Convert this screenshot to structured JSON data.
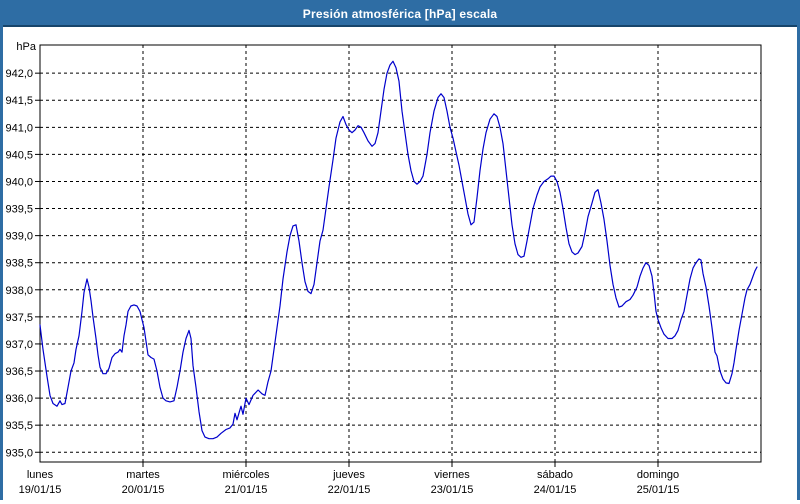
{
  "window": {
    "title": "Presión atmosférica [hPa] escala"
  },
  "colors": {
    "frame": "#2e6da4",
    "frame_dark": "#17456b",
    "title_text": "#ffffff",
    "background": "#ffffff",
    "grid": "#000000",
    "axis_text": "#000000",
    "series": "#0000cc"
  },
  "chart_data": {
    "type": "line",
    "title": "Presión atmosférica [hPa] escala",
    "legend": "none",
    "grid": "dashed",
    "y_axis": {
      "unit_label": "hPa",
      "min": 935.0,
      "max": 942.0,
      "tick_step": 0.5,
      "top_value": 942.52,
      "bottom_value": 934.82,
      "ticks": [
        {
          "value": 942.0,
          "label": "942,0"
        },
        {
          "value": 941.5,
          "label": "941,5"
        },
        {
          "value": 941.0,
          "label": "941,0"
        },
        {
          "value": 940.5,
          "label": "940,5"
        },
        {
          "value": 940.0,
          "label": "940,0"
        },
        {
          "value": 939.5,
          "label": "939,5"
        },
        {
          "value": 939.0,
          "label": "939,0"
        },
        {
          "value": 938.5,
          "label": "938,5"
        },
        {
          "value": 938.0,
          "label": "938,0"
        },
        {
          "value": 937.5,
          "label": "937,5"
        },
        {
          "value": 937.0,
          "label": "937,0"
        },
        {
          "value": 936.5,
          "label": "936,5"
        },
        {
          "value": 936.0,
          "label": "936,0"
        },
        {
          "value": 935.5,
          "label": "935,5"
        },
        {
          "value": 935.0,
          "label": "935,0"
        }
      ]
    },
    "x_axis": {
      "unit": "day",
      "domain_days": 7,
      "days": [
        {
          "name": "lunes",
          "date": "19/01/15"
        },
        {
          "name": "martes",
          "date": "20/01/15"
        },
        {
          "name": "miércoles",
          "date": "21/01/15"
        },
        {
          "name": "jueves",
          "date": "22/01/15"
        },
        {
          "name": "viernes",
          "date": "23/01/15"
        },
        {
          "name": "sábado",
          "date": "24/01/15"
        },
        {
          "name": "domingo",
          "date": "25/01/15"
        }
      ]
    },
    "series": [
      {
        "name": "Presión atmosférica [hPa]",
        "color": "#0000cc",
        "points": [
          [
            0,
            937.35
          ],
          [
            0.029,
            936.9
          ],
          [
            0.068,
            936.4
          ],
          [
            0.097,
            936.05
          ],
          [
            0.126,
            935.9
          ],
          [
            0.165,
            935.85
          ],
          [
            0.194,
            935.95
          ],
          [
            0.214,
            935.88
          ],
          [
            0.243,
            935.9
          ],
          [
            0.272,
            936.2
          ],
          [
            0.301,
            936.5
          ],
          [
            0.33,
            936.65
          ],
          [
            0.35,
            936.9
          ],
          [
            0.379,
            937.15
          ],
          [
            0.408,
            937.6
          ],
          [
            0.427,
            937.95
          ],
          [
            0.456,
            938.2
          ],
          [
            0.476,
            938.05
          ],
          [
            0.495,
            937.8
          ],
          [
            0.515,
            937.5
          ],
          [
            0.544,
            937.1
          ],
          [
            0.563,
            936.8
          ],
          [
            0.583,
            936.57
          ],
          [
            0.612,
            936.45
          ],
          [
            0.641,
            936.45
          ],
          [
            0.67,
            936.55
          ],
          [
            0.699,
            936.75
          ],
          [
            0.728,
            936.82
          ],
          [
            0.757,
            936.85
          ],
          [
            0.777,
            936.9
          ],
          [
            0.796,
            936.85
          ],
          [
            0.816,
            937.15
          ],
          [
            0.835,
            937.35
          ],
          [
            0.854,
            937.6
          ],
          [
            0.883,
            937.7
          ],
          [
            0.913,
            937.72
          ],
          [
            0.942,
            937.7
          ],
          [
            0.971,
            937.6
          ],
          [
            0.99,
            937.45
          ],
          [
            1.01,
            937.3
          ],
          [
            1.029,
            937.05
          ],
          [
            1.049,
            936.8
          ],
          [
            1.078,
            936.75
          ],
          [
            1.107,
            936.72
          ],
          [
            1.136,
            936.5
          ],
          [
            1.165,
            936.2
          ],
          [
            1.194,
            936.0
          ],
          [
            1.223,
            935.95
          ],
          [
            1.262,
            935.93
          ],
          [
            1.301,
            935.95
          ],
          [
            1.33,
            936.2
          ],
          [
            1.359,
            936.5
          ],
          [
            1.388,
            936.85
          ],
          [
            1.417,
            937.1
          ],
          [
            1.447,
            937.25
          ],
          [
            1.466,
            937.1
          ],
          [
            1.485,
            936.6
          ],
          [
            1.515,
            936.2
          ],
          [
            1.544,
            935.75
          ],
          [
            1.573,
            935.4
          ],
          [
            1.602,
            935.28
          ],
          [
            1.641,
            935.25
          ],
          [
            1.68,
            935.25
          ],
          [
            1.718,
            935.28
          ],
          [
            1.757,
            935.35
          ],
          [
            1.806,
            935.42
          ],
          [
            1.845,
            935.45
          ],
          [
            1.874,
            935.52
          ],
          [
            1.893,
            935.72
          ],
          [
            1.913,
            935.6
          ],
          [
            1.951,
            935.85
          ],
          [
            1.971,
            935.7
          ],
          [
            2.0,
            936.0
          ],
          [
            2.029,
            935.88
          ],
          [
            2.068,
            936.05
          ],
          [
            2.117,
            936.15
          ],
          [
            2.155,
            936.08
          ],
          [
            2.184,
            936.05
          ],
          [
            2.214,
            936.3
          ],
          [
            2.243,
            936.5
          ],
          [
            2.272,
            936.9
          ],
          [
            2.301,
            937.3
          ],
          [
            2.33,
            937.7
          ],
          [
            2.359,
            938.2
          ],
          [
            2.398,
            938.7
          ],
          [
            2.427,
            939.0
          ],
          [
            2.456,
            939.18
          ],
          [
            2.485,
            939.2
          ],
          [
            2.515,
            938.9
          ],
          [
            2.544,
            938.5
          ],
          [
            2.573,
            938.15
          ],
          [
            2.602,
            937.97
          ],
          [
            2.631,
            937.93
          ],
          [
            2.66,
            938.1
          ],
          [
            2.689,
            938.5
          ],
          [
            2.718,
            938.9
          ],
          [
            2.748,
            939.1
          ],
          [
            2.777,
            939.5
          ],
          [
            2.806,
            939.9
          ],
          [
            2.845,
            940.4
          ],
          [
            2.874,
            940.8
          ],
          [
            2.913,
            941.1
          ],
          [
            2.942,
            941.2
          ],
          [
            2.971,
            941.05
          ],
          [
            3.0,
            940.95
          ],
          [
            3.029,
            940.9
          ],
          [
            3.058,
            940.95
          ],
          [
            3.087,
            941.03
          ],
          [
            3.117,
            941.0
          ],
          [
            3.146,
            940.9
          ],
          [
            3.184,
            940.75
          ],
          [
            3.223,
            940.65
          ],
          [
            3.252,
            940.7
          ],
          [
            3.282,
            940.9
          ],
          [
            3.311,
            941.3
          ],
          [
            3.34,
            941.7
          ],
          [
            3.369,
            942.0
          ],
          [
            3.398,
            942.15
          ],
          [
            3.427,
            942.22
          ],
          [
            3.456,
            942.1
          ],
          [
            3.485,
            941.85
          ],
          [
            3.515,
            941.3
          ],
          [
            3.544,
            940.9
          ],
          [
            3.573,
            940.5
          ],
          [
            3.602,
            940.2
          ],
          [
            3.631,
            940.0
          ],
          [
            3.66,
            939.95
          ],
          [
            3.689,
            940.0
          ],
          [
            3.718,
            940.1
          ],
          [
            3.757,
            940.5
          ],
          [
            3.786,
            940.9
          ],
          [
            3.825,
            941.3
          ],
          [
            3.864,
            941.55
          ],
          [
            3.893,
            941.62
          ],
          [
            3.922,
            941.55
          ],
          [
            3.951,
            941.3
          ],
          [
            3.981,
            941.0
          ],
          [
            4.01,
            940.8
          ],
          [
            4.039,
            940.55
          ],
          [
            4.068,
            940.3
          ],
          [
            4.097,
            940.0
          ],
          [
            4.126,
            939.7
          ],
          [
            4.155,
            939.4
          ],
          [
            4.184,
            939.2
          ],
          [
            4.214,
            939.25
          ],
          [
            4.243,
            939.7
          ],
          [
            4.272,
            940.2
          ],
          [
            4.301,
            940.6
          ],
          [
            4.33,
            940.9
          ],
          [
            4.369,
            941.15
          ],
          [
            4.408,
            941.25
          ],
          [
            4.437,
            941.2
          ],
          [
            4.466,
            941.0
          ],
          [
            4.495,
            940.7
          ],
          [
            4.524,
            940.2
          ],
          [
            4.553,
            939.7
          ],
          [
            4.583,
            939.2
          ],
          [
            4.612,
            938.85
          ],
          [
            4.641,
            938.65
          ],
          [
            4.67,
            938.6
          ],
          [
            4.699,
            938.62
          ],
          [
            4.728,
            938.9
          ],
          [
            4.757,
            939.2
          ],
          [
            4.786,
            939.5
          ],
          [
            4.825,
            939.75
          ],
          [
            4.854,
            939.9
          ],
          [
            4.893,
            940.0
          ],
          [
            4.932,
            940.05
          ],
          [
            4.961,
            940.1
          ],
          [
            4.99,
            940.1
          ],
          [
            5.019,
            940.0
          ],
          [
            5.049,
            939.8
          ],
          [
            5.078,
            939.5
          ],
          [
            5.107,
            939.15
          ],
          [
            5.136,
            938.85
          ],
          [
            5.165,
            938.7
          ],
          [
            5.194,
            938.65
          ],
          [
            5.223,
            938.68
          ],
          [
            5.262,
            938.8
          ],
          [
            5.291,
            939.05
          ],
          [
            5.32,
            939.35
          ],
          [
            5.359,
            939.6
          ],
          [
            5.388,
            939.8
          ],
          [
            5.417,
            939.85
          ],
          [
            5.447,
            939.6
          ],
          [
            5.476,
            939.3
          ],
          [
            5.505,
            938.9
          ],
          [
            5.534,
            938.45
          ],
          [
            5.563,
            938.1
          ],
          [
            5.592,
            937.85
          ],
          [
            5.621,
            937.68
          ],
          [
            5.65,
            937.7
          ],
          [
            5.689,
            937.78
          ],
          [
            5.728,
            937.82
          ],
          [
            5.757,
            937.9
          ],
          [
            5.796,
            938.05
          ],
          [
            5.825,
            938.25
          ],
          [
            5.854,
            938.4
          ],
          [
            5.883,
            938.5
          ],
          [
            5.913,
            938.45
          ],
          [
            5.942,
            938.25
          ],
          [
            5.961,
            937.95
          ],
          [
            5.981,
            937.6
          ],
          [
            6.0,
            937.45
          ],
          [
            6.029,
            937.3
          ],
          [
            6.058,
            937.18
          ],
          [
            6.097,
            937.1
          ],
          [
            6.136,
            937.1
          ],
          [
            6.165,
            937.15
          ],
          [
            6.194,
            937.25
          ],
          [
            6.223,
            937.45
          ],
          [
            6.252,
            937.6
          ],
          [
            6.282,
            937.9
          ],
          [
            6.311,
            938.2
          ],
          [
            6.34,
            938.4
          ],
          [
            6.369,
            938.5
          ],
          [
            6.398,
            938.57
          ],
          [
            6.417,
            938.55
          ],
          [
            6.437,
            938.3
          ],
          [
            6.466,
            938.05
          ],
          [
            6.495,
            937.7
          ],
          [
            6.524,
            937.3
          ],
          [
            6.553,
            936.85
          ],
          [
            6.573,
            936.78
          ],
          [
            6.602,
            936.5
          ],
          [
            6.631,
            936.35
          ],
          [
            6.66,
            936.28
          ],
          [
            6.689,
            936.27
          ],
          [
            6.718,
            936.45
          ],
          [
            6.738,
            936.65
          ],
          [
            6.757,
            936.9
          ],
          [
            6.786,
            937.25
          ],
          [
            6.816,
            937.55
          ],
          [
            6.845,
            937.85
          ],
          [
            6.864,
            938.0
          ],
          [
            6.893,
            938.1
          ],
          [
            6.913,
            938.2
          ],
          [
            6.942,
            938.35
          ],
          [
            6.961,
            938.42
          ]
        ]
      }
    ]
  }
}
